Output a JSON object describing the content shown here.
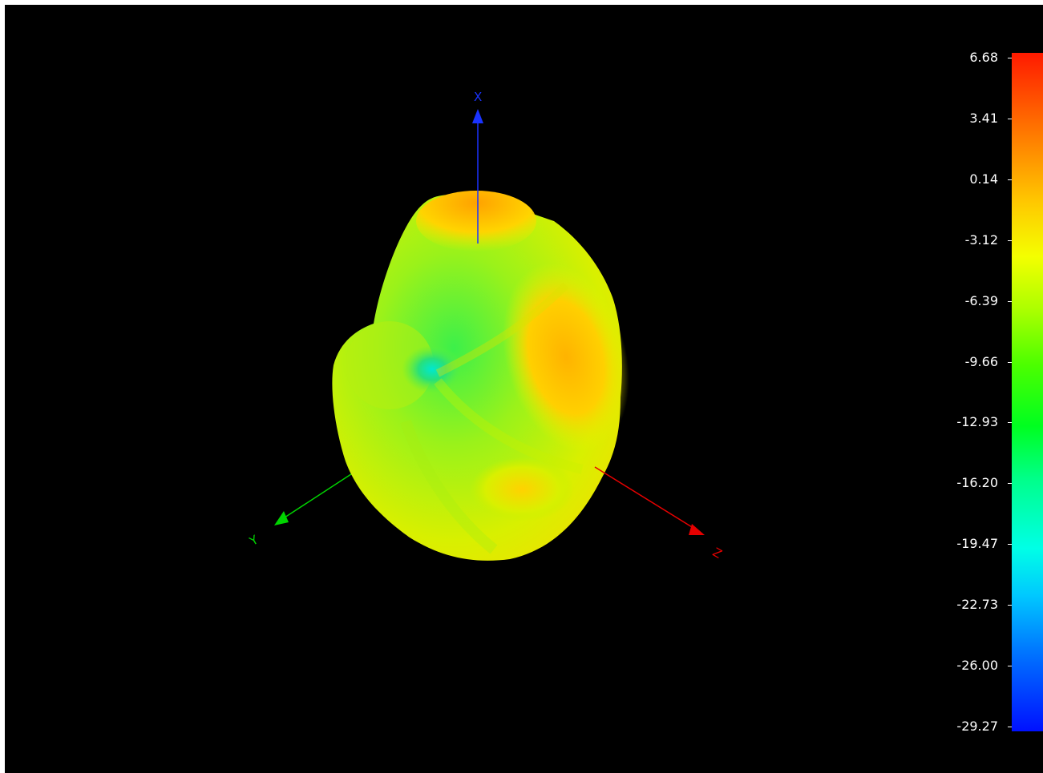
{
  "viewer": {
    "background_color": "#000000",
    "axes": [
      {
        "name": "X",
        "color": "#1a33ff"
      },
      {
        "name": "Y",
        "color": "#00d400"
      },
      {
        "name": "Z",
        "color": "#e60000"
      }
    ]
  },
  "colorbar": {
    "ticks": [
      "6.68",
      "3.41",
      "0.14",
      "-3.12",
      "-6.39",
      "-9.66",
      "-12.93",
      "-16.20",
      "-19.47",
      "-22.73",
      "-26.00",
      "-29.27"
    ],
    "max": 6.68,
    "min": -29.27,
    "colormap": "jet"
  }
}
